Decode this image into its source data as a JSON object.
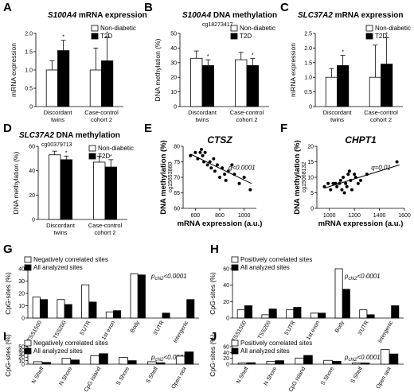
{
  "figure": {
    "panel_labels": [
      "A",
      "B",
      "C",
      "D",
      "E",
      "F",
      "G",
      "H",
      "I",
      "J"
    ]
  },
  "chart_data": [
    {
      "panel": "A",
      "type": "bar",
      "title_gene": "S100A4",
      "title_rest": " mRNA expression",
      "subtitle": "",
      "ylabel": "mRNA expression",
      "ylim": [
        0,
        2.0
      ],
      "yticks": [
        0,
        0.5,
        1.0,
        1.5,
        2.0
      ],
      "ytick_labels": [
        "0",
        "0.5",
        "1.0",
        "1.5",
        "2.0"
      ],
      "groups": [
        [
          "Discordant",
          "twins"
        ],
        [
          "Case-control",
          "cohort 2"
        ]
      ],
      "legend": [
        "Non-diabetic",
        "T2D"
      ],
      "series": [
        {
          "name": "Non-diabetic",
          "values": [
            1.0,
            1.0
          ],
          "errors": [
            0.25,
            0.6
          ]
        },
        {
          "name": "T2D",
          "values": [
            1.53,
            1.25
          ],
          "errors": [
            0.28,
            0.65
          ]
        }
      ],
      "markers": [
        "*",
        "*"
      ]
    },
    {
      "panel": "B",
      "type": "bar",
      "title_gene": "S100A4",
      "title_rest": " DNA methylation",
      "subtitle": "cg18273417",
      "ylabel": "DNA methylation (%)",
      "ylim": [
        0,
        50
      ],
      "yticks": [
        0,
        10,
        20,
        30,
        40,
        50
      ],
      "ytick_labels": [
        "0",
        "10",
        "20",
        "30",
        "40",
        "50"
      ],
      "groups": [
        [
          "Discordant",
          "twins"
        ],
        [
          "Case-control",
          "cohort 2"
        ]
      ],
      "legend": [
        "Non-diabetic",
        "T2D"
      ],
      "series": [
        {
          "name": "Non-diabetic",
          "values": [
            33,
            32
          ],
          "errors": [
            5,
            5
          ]
        },
        {
          "name": "T2D",
          "values": [
            28,
            28
          ],
          "errors": [
            4,
            5
          ]
        }
      ],
      "markers": [
        "*",
        "*"
      ]
    },
    {
      "panel": "C",
      "type": "bar",
      "title_gene": "SLC37A2",
      "title_rest": " mRNA expression",
      "subtitle": "",
      "ylabel": "mRNA expression",
      "ylim": [
        0,
        2.5
      ],
      "yticks": [
        0,
        0.5,
        1.0,
        1.5,
        2.0,
        2.5
      ],
      "ytick_labels": [
        "0",
        "0.5",
        "1.0",
        "1.5",
        "2.0",
        "2.5"
      ],
      "groups": [
        [
          "Discordant",
          "twins"
        ],
        [
          "Case-control",
          "cohort 2"
        ]
      ],
      "legend": [
        "Non-diabetic",
        "T2D"
      ],
      "series": [
        {
          "name": "Non-diabetic",
          "values": [
            1.0,
            1.0
          ],
          "errors": [
            0.3,
            1.1
          ]
        },
        {
          "name": "T2D",
          "values": [
            1.4,
            1.45
          ],
          "errors": [
            0.35,
            0.9
          ]
        }
      ],
      "markers": [
        "*",
        "*"
      ]
    },
    {
      "panel": "D",
      "type": "bar",
      "title_gene": "SLC37A2",
      "title_rest": " DNA methylation",
      "subtitle": "cg00379713",
      "ylabel": "DNA methylation (%)",
      "ylim": [
        0,
        60
      ],
      "yticks": [
        0,
        20,
        40,
        60
      ],
      "ytick_labels": [
        "0",
        "20",
        "40",
        "60"
      ],
      "groups": [
        [
          "Discordant",
          "twins"
        ],
        [
          "Case-control",
          "cohort 2"
        ]
      ],
      "legend": [
        "Non-diabetic",
        "T2D"
      ],
      "series": [
        {
          "name": "Non-diabetic",
          "values": [
            53,
            47
          ],
          "errors": [
            3,
            5
          ]
        },
        {
          "name": "T2D",
          "values": [
            49,
            43
          ],
          "errors": [
            3,
            6
          ]
        }
      ],
      "markers": [
        "*",
        "*"
      ]
    },
    {
      "panel": "E",
      "type": "scatter",
      "gene": "CTSZ",
      "stat": "q<0.0001",
      "ylabel": "DNA methylation (%)",
      "ylabel2": "cg15653860",
      "xlabel": "mRNA expression (a.u.)",
      "xlim": [
        500,
        1100
      ],
      "ylim": [
        60,
        80
      ],
      "xticks": [
        600,
        800,
        1000
      ],
      "yticks": [
        60,
        65,
        70,
        75,
        80
      ],
      "x": [
        560,
        600,
        620,
        640,
        650,
        660,
        670,
        680,
        700,
        720,
        730,
        750,
        760,
        780,
        800,
        820,
        840,
        850,
        870,
        900,
        920,
        960,
        1000,
        1050
      ],
      "y": [
        77,
        78,
        76,
        78,
        79,
        77,
        75,
        78,
        74,
        75,
        73,
        76,
        72,
        74,
        70,
        73,
        71,
        69,
        72,
        74,
        71,
        68,
        70,
        66
      ],
      "fit": [
        [
          560,
          77.5
        ],
        [
          1060,
          68
        ]
      ]
    },
    {
      "panel": "F",
      "type": "scatter",
      "gene": "CHPT1",
      "stat": "q=0.01",
      "ylabel": "DNA methylation (%)",
      "ylabel2": "cg15068132",
      "xlabel": "mRNA expression (a.u.)",
      "xlim": [
        900,
        1600
      ],
      "ylim": [
        0,
        20
      ],
      "xticks": [
        1000,
        1200,
        1400,
        1600
      ],
      "yticks": [
        0,
        5,
        10,
        15,
        20
      ],
      "x": [
        960,
        990,
        1010,
        1030,
        1050,
        1060,
        1080,
        1090,
        1100,
        1110,
        1120,
        1130,
        1140,
        1150,
        1160,
        1170,
        1180,
        1200,
        1210,
        1230,
        1250,
        1300,
        1540
      ],
      "y": [
        7,
        8,
        6,
        8,
        8,
        7,
        8,
        9,
        6,
        10,
        5,
        8,
        7,
        11,
        12,
        9,
        6,
        11,
        10,
        8,
        9,
        11,
        15
      ],
      "fit": [
        [
          960,
          6.5
        ],
        [
          1560,
          14
        ]
      ]
    },
    {
      "panel": "G",
      "type": "bar",
      "ylabel": "CpG-sites (%)",
      "ylim": [
        0,
        40
      ],
      "yticks": [
        0,
        10,
        20,
        30,
        40
      ],
      "categories": [
        "TSS1500",
        "TSS200",
        "5'UTR",
        "1st exon",
        "Body",
        "3'UTR",
        "Intergenic"
      ],
      "legend": [
        "Negatively correlated sites",
        "All analyzed sites"
      ],
      "stat": "p",
      "stat_sub": "chi2",
      "stat_rest": "<0.0001",
      "series": [
        {
          "name": "Negatively correlated sites",
          "values": [
            17,
            15,
            27,
            5,
            36,
            0,
            0
          ]
        },
        {
          "name": "All analyzed sites",
          "values": [
            15,
            11,
            13,
            6,
            35,
            4,
            15
          ]
        }
      ]
    },
    {
      "panel": "H",
      "type": "bar",
      "ylabel": "CpG-sites (%)",
      "ylim": [
        0,
        60
      ],
      "yticks": [
        0,
        20,
        40,
        60
      ],
      "categories": [
        "TSS1500",
        "TSS200",
        "5'UTR",
        "1st exon",
        "Body",
        "3'UTR",
        "Intergenic"
      ],
      "legend": [
        "Positively correlated sites",
        "All analyzed sites"
      ],
      "stat": "p",
      "stat_sub": "chi2",
      "stat_rest": "<0.0001",
      "series": [
        {
          "name": "Positively correlated sites",
          "values": [
            10,
            4,
            10,
            6,
            64,
            10,
            0
          ]
        },
        {
          "name": "All analyzed sites",
          "values": [
            15,
            11,
            13,
            6,
            35,
            4,
            15
          ]
        }
      ]
    },
    {
      "panel": "I",
      "type": "bar",
      "ylabel": "CpG-sites (%)",
      "ylim": [
        0,
        50
      ],
      "yticks": [
        0,
        10,
        20,
        30,
        40,
        50
      ],
      "categories": [
        "N Shelf",
        "N Shore",
        "CpG Island",
        "S Shore",
        "S Shelf",
        "Open sea"
      ],
      "legend": [
        "Negatively correlated sites",
        "All analyzed sites"
      ],
      "stat": "p",
      "stat_sub": "chi2",
      "stat_rest": "<0.0001",
      "series": [
        {
          "name": "Negatively correlated sites",
          "values": [
            7,
            17,
            24,
            19,
            7,
            23
          ]
        },
        {
          "name": "All analyzed sites",
          "values": [
            5,
            12,
            30,
            10,
            4,
            35
          ]
        }
      ]
    },
    {
      "panel": "J",
      "type": "bar",
      "ylabel": "CpG-sites (%)",
      "ylim": [
        0,
        60
      ],
      "yticks": [
        0,
        20,
        40,
        60
      ],
      "categories": [
        "N Shelf",
        "N Shore",
        "CpG Island",
        "S Shore",
        "S Shelf",
        "Open sea"
      ],
      "legend": [
        "Positively correlated sites",
        "All analyzed sites"
      ],
      "stat": "p",
      "stat_sub": "chi2",
      "stat_rest": "<0.0001",
      "series": [
        {
          "name": "Positively correlated sites",
          "values": [
            4,
            10,
            21,
            13,
            4,
            50
          ]
        },
        {
          "name": "All analyzed sites",
          "values": [
            5,
            12,
            30,
            10,
            4,
            35
          ]
        }
      ]
    }
  ]
}
